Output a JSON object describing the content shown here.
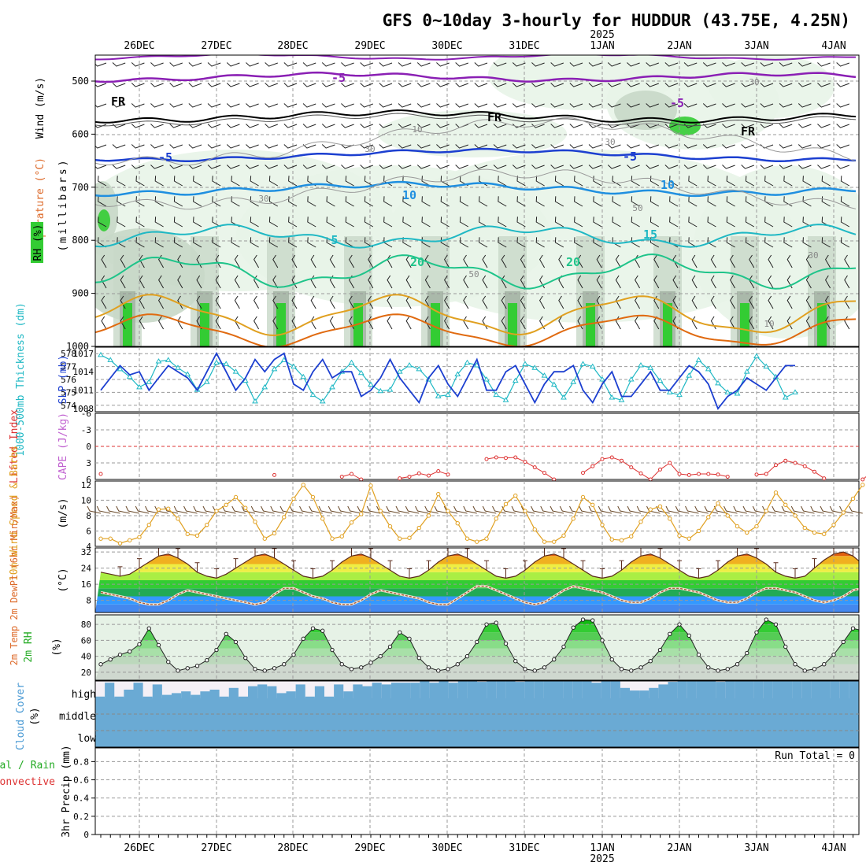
{
  "title": "GFS 0~10day 3-hourly for HUDDUR (43.75E, 4.25N)",
  "dates": [
    "26DEC",
    "27DEC",
    "28DEC",
    "29DEC",
    "30DEC",
    "31DEC",
    "1JAN",
    "2JAN",
    "3JAN",
    "4JAN"
  ],
  "year_label": "2025",
  "colors": {
    "purple": "#8a1fb4",
    "black": "#000000",
    "blue": "#1c3fd0",
    "lightblue": "#1f8fe0",
    "cyan": "#1fb8c4",
    "teal": "#1fc48a",
    "orange": "#e0a020",
    "darkorange": "#e06a10",
    "green": "#33cc33",
    "rh_light": "#e8f4e8",
    "rh_mid": "#c8d8c8",
    "rh_dark": "#9aaa9a",
    "cloud": "#6aaad4",
    "temp_fill": "#f08a20",
    "dewpt": "#a0522d",
    "precip_total": "#22aa22",
    "precip_conv": "#dd3333"
  },
  "panels": {
    "upper": {
      "ylabel_wind": "Wind (m/s)",
      "ylabel_temp": "Temperature (°C)",
      "ylabel_mb": "(millibars)",
      "ylabel_rh": "RH (%)",
      "levels": [
        "500",
        "600",
        "700",
        "800",
        "900",
        "1000"
      ],
      "contour_labels": [
        {
          "text": "-5",
          "color": "purple"
        },
        {
          "text": "-5",
          "color": "purple"
        },
        {
          "text": "FR",
          "color": "black"
        },
        {
          "text": "FR",
          "color": "black"
        },
        {
          "text": "FR",
          "color": "black"
        },
        {
          "text": "-5",
          "color": "blue"
        },
        {
          "text": "-5",
          "color": "blue"
        },
        {
          "text": "10",
          "color": "lightblue"
        },
        {
          "text": "10",
          "color": "lightblue"
        },
        {
          "text": "5",
          "color": "cyan"
        },
        {
          "text": "15",
          "color": "cyan"
        },
        {
          "text": "20",
          "color": "teal"
        },
        {
          "text": "20",
          "color": "teal"
        },
        {
          "text": "30",
          "color": "gray"
        },
        {
          "text": "30",
          "color": "gray"
        },
        {
          "text": "10",
          "color": "gray"
        },
        {
          "text": "30",
          "color": "gray"
        },
        {
          "text": "30",
          "color": "gray"
        },
        {
          "text": "50",
          "color": "gray"
        },
        {
          "text": "50",
          "color": "gray"
        },
        {
          "text": "30",
          "color": "gray"
        },
        {
          "text": "10",
          "color": "gray"
        }
      ]
    },
    "thickness": {
      "ylabel_left": "1000-500mb Thickness (dm)",
      "ylabel_right": "SLP (mb)",
      "left_ticks": [
        "578",
        "577",
        "576",
        "575",
        "574"
      ],
      "right_ticks": [
        "1017",
        "1014",
        "1011",
        "1008"
      ],
      "thickness_ylim": [
        573.5,
        578.5
      ],
      "slp_ylim": [
        1007.5,
        1018
      ]
    },
    "stability": {
      "ylabel_left": "Lifted Index",
      "ylabel_right": "CAPE (J/kg)",
      "ticks": [
        "-6",
        "-3",
        "0",
        "3",
        "6"
      ],
      "ylim": [
        -6,
        6
      ]
    },
    "wind10m": {
      "ylabel": "10m Wind Speed & Barbs",
      "unit": "(m/s)",
      "ticks": [
        "12",
        "10",
        "8",
        "6",
        "4"
      ],
      "ylim": [
        4,
        12.5
      ]
    },
    "temp2m": {
      "ylabel": "2m Temp 2m DewPt (6hr Min/Max)",
      "unit": "(°C)",
      "ticks": [
        "32",
        "24",
        "16",
        "8"
      ],
      "ylim": [
        2,
        34
      ]
    },
    "rh2m": {
      "ylabel": "2m RH",
      "unit": "(%)",
      "ticks": [
        "80",
        "60",
        "40",
        "20"
      ],
      "ylim": [
        10,
        92
      ]
    },
    "cloud": {
      "ylabel": "Cloud Cover",
      "unit": "(%)",
      "levels": [
        "high",
        "middle",
        "low"
      ]
    },
    "precip": {
      "ylabel_a": "Total / Rain",
      "ylabel_b": "Convective",
      "ylabel_c": "3hr Precip (mm)",
      "ticks": [
        "0.8",
        "0.6",
        "0.4",
        "0.2",
        "0"
      ],
      "ylim": [
        0,
        0.95
      ],
      "run_total": "Run Total = 0"
    }
  },
  "chart_data": [
    {
      "type": "line",
      "title": "1000-500mb Thickness and SLP",
      "series": [
        {
          "name": "Thickness (dm)",
          "values": [
            577.9,
            577.5,
            576.8,
            576.2,
            575.4,
            575.8,
            577.4,
            577.5,
            576.9,
            576.4,
            575.2,
            575.8,
            577.3,
            577.2,
            576.6,
            575.9,
            574.3,
            575.4,
            576.8,
            577.5,
            577.0,
            576.2,
            574.8,
            574.3,
            575.4,
            576.6,
            577.3,
            576.5,
            575.6,
            575.1,
            575.2,
            576.6,
            577.1,
            576.8,
            576.0,
            574.7,
            574.8,
            576.4,
            577.3,
            577.1,
            576.0,
            574.8,
            574.4,
            575.9,
            577.2,
            576.9,
            576.3,
            575.6,
            574.6,
            575.8,
            577.2,
            577.0,
            576.0,
            574.6,
            574.4,
            576.0,
            577.1,
            576.9,
            575.9,
            575.0,
            574.8,
            576.3,
            577.5,
            576.8,
            575.7,
            575.0,
            574.9,
            576.6,
            577.8,
            577.0,
            576.2,
            574.6,
            575.0
          ]
        },
        {
          "name": "SLP (mb)",
          "values": [
            1011,
            1013,
            1015,
            1013.5,
            1014,
            1011,
            1013,
            1015,
            1014,
            1013,
            1011,
            1014,
            1017,
            1014,
            1011,
            1013,
            1016,
            1014,
            1016,
            1017,
            1012,
            1011,
            1014,
            1016,
            1013,
            1014,
            1014,
            1010,
            1011,
            1013,
            1016,
            1013,
            1011,
            1009,
            1013,
            1015,
            1012,
            1010,
            1013,
            1016,
            1011,
            1011,
            1014,
            1015,
            1012,
            1009,
            1012,
            1014,
            1014,
            1015,
            1011,
            1009,
            1012,
            1014,
            1010,
            1010,
            1012,
            1014,
            1011,
            1011,
            1013,
            1015,
            1014,
            1012,
            1008,
            1010,
            1011,
            1013,
            1012,
            1011,
            1013,
            1015,
            1015
          ]
        }
      ]
    },
    {
      "type": "line",
      "title": "Lifted Index",
      "series": [
        {
          "name": "Lifted Index",
          "values": [
            5,
            6.2,
            null,
            null,
            null,
            null,
            null,
            null,
            null,
            null,
            null,
            null,
            null,
            null,
            null,
            null,
            null,
            null,
            5.2,
            6.3,
            null,
            null,
            null,
            null,
            null,
            5.5,
            5.0,
            6.0,
            null,
            null,
            null,
            5.8,
            5.5,
            4.9,
            5.3,
            4.5,
            5.1,
            6.2,
            null,
            null,
            2.3,
            2.0,
            2.1,
            2.0,
            2.8,
            3.8,
            4.8,
            6.0,
            null,
            null,
            4.8,
            3.6,
            2.3,
            2.0,
            2.6,
            3.8,
            4.9,
            6.0,
            4.2,
            3.0,
            5.0,
            5.2,
            5.0,
            5.0,
            5.1,
            5.5,
            6.4,
            null,
            5.1,
            5.0,
            3.4,
            2.6,
            3.0,
            3.6,
            4.6,
            5.8,
            null,
            null,
            null,
            6.0,
            4.6
          ]
        }
      ]
    },
    {
      "type": "line",
      "title": "10m Wind Speed",
      "series": [
        {
          "name": "Wind Speed (m/s)",
          "values": [
            5.0,
            5.0,
            4.4,
            4.8,
            5.2,
            6.8,
            8.8,
            8.9,
            7.6,
            5.6,
            5.4,
            6.8,
            8.6,
            9.4,
            10.4,
            9.0,
            7.2,
            5.0,
            5.7,
            7.8,
            10.2,
            12.0,
            10.4,
            7.6,
            5.0,
            5.3,
            7.1,
            8.2,
            11.9,
            8.6,
            6.6,
            5.0,
            5.1,
            6.4,
            8.0,
            10.8,
            8.6,
            7.0,
            5.0,
            4.6,
            5.0,
            7.6,
            9.5,
            10.6,
            8.6,
            6.2,
            4.6,
            4.6,
            5.4,
            7.6,
            10.4,
            9.4,
            6.8,
            4.9,
            4.8,
            5.3,
            7.2,
            8.8,
            9.2,
            7.6,
            5.4,
            5.0,
            6.0,
            7.8,
            9.6,
            8.0,
            6.6,
            5.8,
            6.6,
            8.6,
            11.0,
            9.4,
            8.0,
            6.4,
            5.8,
            5.6,
            6.8,
            8.4,
            10.2,
            12.0
          ]
        }
      ]
    },
    {
      "type": "area",
      "title": "2m Temp / DewPt",
      "series": [
        {
          "name": "2m Temp (°C)",
          "values": [
            22,
            21,
            20,
            21,
            24,
            27,
            30,
            31,
            29,
            26,
            22,
            20,
            19,
            21,
            24,
            27,
            30,
            31,
            29,
            26,
            23,
            20,
            19,
            20,
            23,
            27,
            30,
            31,
            29,
            26,
            23,
            20,
            19,
            20,
            23,
            27,
            30,
            31,
            29,
            26,
            23,
            20,
            19,
            20,
            23,
            27,
            30,
            31,
            29,
            26,
            23,
            20,
            19,
            20,
            23,
            27,
            30,
            31,
            29,
            26,
            23,
            20,
            19,
            20,
            23,
            27,
            30,
            31,
            29,
            26,
            22,
            20,
            19,
            20,
            24,
            28,
            31,
            32,
            30,
            26,
            22,
            21,
            25
          ]
        },
        {
          "name": "2m DewPt (°C)",
          "values": [
            12,
            11,
            10,
            9,
            7,
            6,
            6,
            8,
            11,
            13,
            12,
            11,
            10,
            9,
            8,
            7,
            6,
            7,
            11,
            14,
            14,
            12,
            10,
            9,
            7,
            6,
            6,
            8,
            11,
            13,
            12,
            11,
            10,
            9,
            7,
            6,
            6,
            9,
            12,
            15,
            15,
            13,
            11,
            9,
            7,
            6,
            7,
            10,
            13,
            15,
            14,
            13,
            12,
            10,
            8,
            7,
            7,
            9,
            12,
            14,
            14,
            13,
            12,
            10,
            8,
            7,
            7,
            9,
            12,
            14,
            14,
            13,
            12,
            10,
            8,
            7,
            8,
            10,
            13,
            14
          ]
        }
      ]
    },
    {
      "type": "area",
      "title": "2m RH",
      "series": [
        {
          "name": "2m RH (%)",
          "values": [
            30,
            36,
            42,
            46,
            55,
            75,
            54,
            33,
            22,
            25,
            28,
            35,
            48,
            68,
            58,
            38,
            24,
            22,
            25,
            30,
            42,
            62,
            75,
            72,
            48,
            30,
            24,
            26,
            32,
            40,
            52,
            70,
            62,
            38,
            26,
            22,
            24,
            30,
            40,
            58,
            80,
            82,
            56,
            34,
            24,
            22,
            26,
            36,
            52,
            76,
            86,
            85,
            60,
            36,
            24,
            22,
            26,
            34,
            48,
            68,
            80,
            66,
            42,
            26,
            22,
            24,
            30,
            44,
            70,
            86,
            80,
            52,
            30,
            22,
            24,
            30,
            42,
            58,
            75,
            72,
            48,
            30,
            24,
            26,
            30,
            42,
            58,
            66,
            46
          ]
        }
      ]
    },
    {
      "type": "bar",
      "title": "3hr Precip (mm)",
      "series": [
        {
          "name": "Total / Rain",
          "values": []
        },
        {
          "name": "Convective",
          "values": []
        }
      ],
      "ylim": [
        0,
        0.95
      ],
      "note": "Run Total = 0"
    }
  ]
}
